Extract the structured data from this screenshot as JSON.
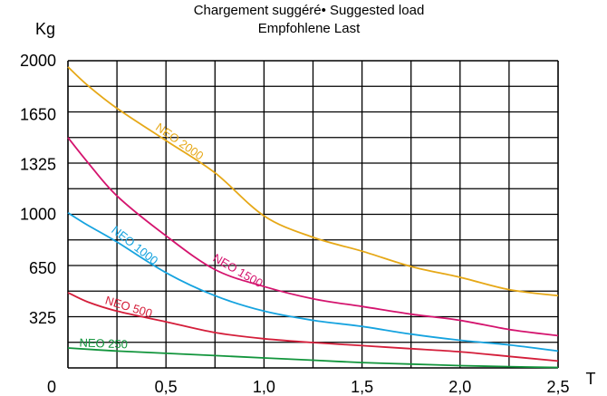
{
  "chart_data": {
    "type": "line",
    "title_lines": [
      "Chargement suggéré• Suggested load",
      "Empfohlene Last"
    ],
    "ylabel": "Kg",
    "xlabel": "T",
    "origin_label": "0",
    "ylim": [
      0,
      2000
    ],
    "xlim": [
      0,
      2.5
    ],
    "y_ticks": [
      {
        "value": 325,
        "label": "325"
      },
      {
        "value": 650,
        "label": "650"
      },
      {
        "value": 1000,
        "label": "1000"
      },
      {
        "value": 1325,
        "label": "1325"
      },
      {
        "value": 1650,
        "label": "1650"
      },
      {
        "value": 2000,
        "label": "2000"
      }
    ],
    "x_ticks": [
      {
        "value": 0.5,
        "label": "0,5"
      },
      {
        "value": 1.0,
        "label": "1,0"
      },
      {
        "value": 1.5,
        "label": "1,5"
      },
      {
        "value": 2.0,
        "label": "2,0"
      },
      {
        "value": 2.5,
        "label": "2,5"
      }
    ],
    "grid": true,
    "series": [
      {
        "name": "NEO 2000",
        "color": "#e6a817",
        "label_angle": 35,
        "label_at": 0.55,
        "x": [
          0,
          0.1,
          0.25,
          0.5,
          0.75,
          1.0,
          1.25,
          1.5,
          1.75,
          2.0,
          2.25,
          2.5
        ],
        "y": [
          1960,
          1840,
          1690,
          1480,
          1270,
          990,
          850,
          760,
          660,
          590,
          510,
          470
        ]
      },
      {
        "name": "NEO 1500",
        "color": "#d4146e",
        "label_angle": 30,
        "label_at": 0.85,
        "x": [
          0,
          0.1,
          0.25,
          0.5,
          0.75,
          1.0,
          1.25,
          1.5,
          1.75,
          2.0,
          2.25,
          2.5
        ],
        "y": [
          1500,
          1340,
          1120,
          860,
          640,
          530,
          450,
          400,
          350,
          310,
          250,
          210
        ]
      },
      {
        "name": "NEO 1000",
        "color": "#16a3df",
        "label_angle": 38,
        "label_at": 0.32,
        "x": [
          0,
          0.1,
          0.25,
          0.5,
          0.75,
          1.0,
          1.25,
          1.5,
          1.75,
          2.0,
          2.25,
          2.5
        ],
        "y": [
          1010,
          930,
          820,
          620,
          470,
          370,
          310,
          270,
          220,
          180,
          150,
          110
        ]
      },
      {
        "name": "NEO 500",
        "color": "#d41e3a",
        "label_angle": 17,
        "label_at": 0.3,
        "x": [
          0,
          0.1,
          0.25,
          0.5,
          0.75,
          1.0,
          1.25,
          1.5,
          1.75,
          2.0,
          2.25,
          2.5
        ],
        "y": [
          490,
          430,
          370,
          300,
          230,
          190,
          165,
          145,
          125,
          105,
          75,
          45
        ]
      },
      {
        "name": "NEO 250",
        "color": "#12953c",
        "label_angle": 2,
        "label_at": 0.18,
        "x": [
          0,
          0.25,
          0.5,
          0.75,
          1.0,
          1.25,
          1.5,
          1.75,
          2.0,
          2.25,
          2.5
        ],
        "y": [
          130,
          110,
          95,
          80,
          65,
          50,
          35,
          25,
          15,
          8,
          3
        ]
      }
    ]
  }
}
